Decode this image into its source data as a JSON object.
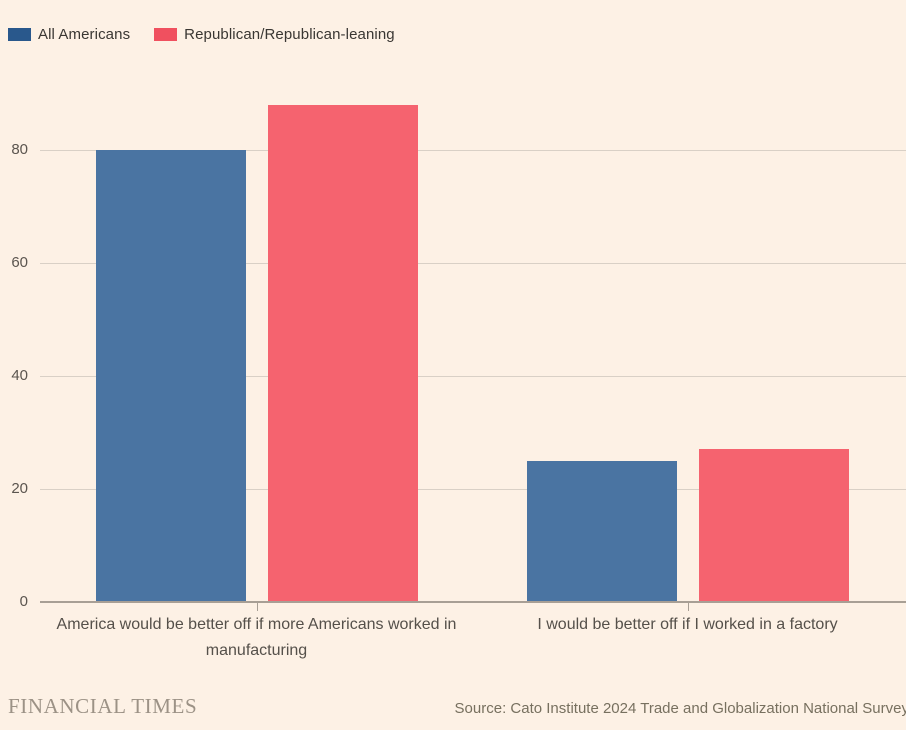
{
  "legend": {
    "items": [
      {
        "label": "All Americans",
        "swatch_color": "#29588c"
      },
      {
        "label": "Republican/Republican-leaning",
        "swatch_color": "#f0505f"
      }
    ]
  },
  "chart_data": {
    "type": "bar",
    "categories": [
      "America would be better off if more Americans worked in manufacturing",
      "I would be better off if I worked in a factory"
    ],
    "series": [
      {
        "name": "All Americans",
        "color": "#4a74a2",
        "values": [
          80,
          25
        ]
      },
      {
        "name": "Republican/Republican-leaning",
        "color": "#f5636f",
        "values": [
          88,
          27
        ]
      }
    ],
    "ylim": [
      0,
      90
    ],
    "yticks": [
      0,
      20,
      40,
      60,
      80
    ],
    "grid": true,
    "legend_position": "top-left"
  },
  "footer": {
    "brand": "FINANCIAL TIMES",
    "source": "Source: Cato Institute 2024 Trade and Globalization National Survey"
  },
  "colors": {
    "background": "#fdf1e5",
    "gridline": "#d9d0c6",
    "axis": "#a89f95",
    "tick_label": "#5b554f",
    "category_label": "#55504a",
    "legend_text": "#3a3733",
    "brand_text": "#9c9286",
    "source_text": "#77705f"
  }
}
